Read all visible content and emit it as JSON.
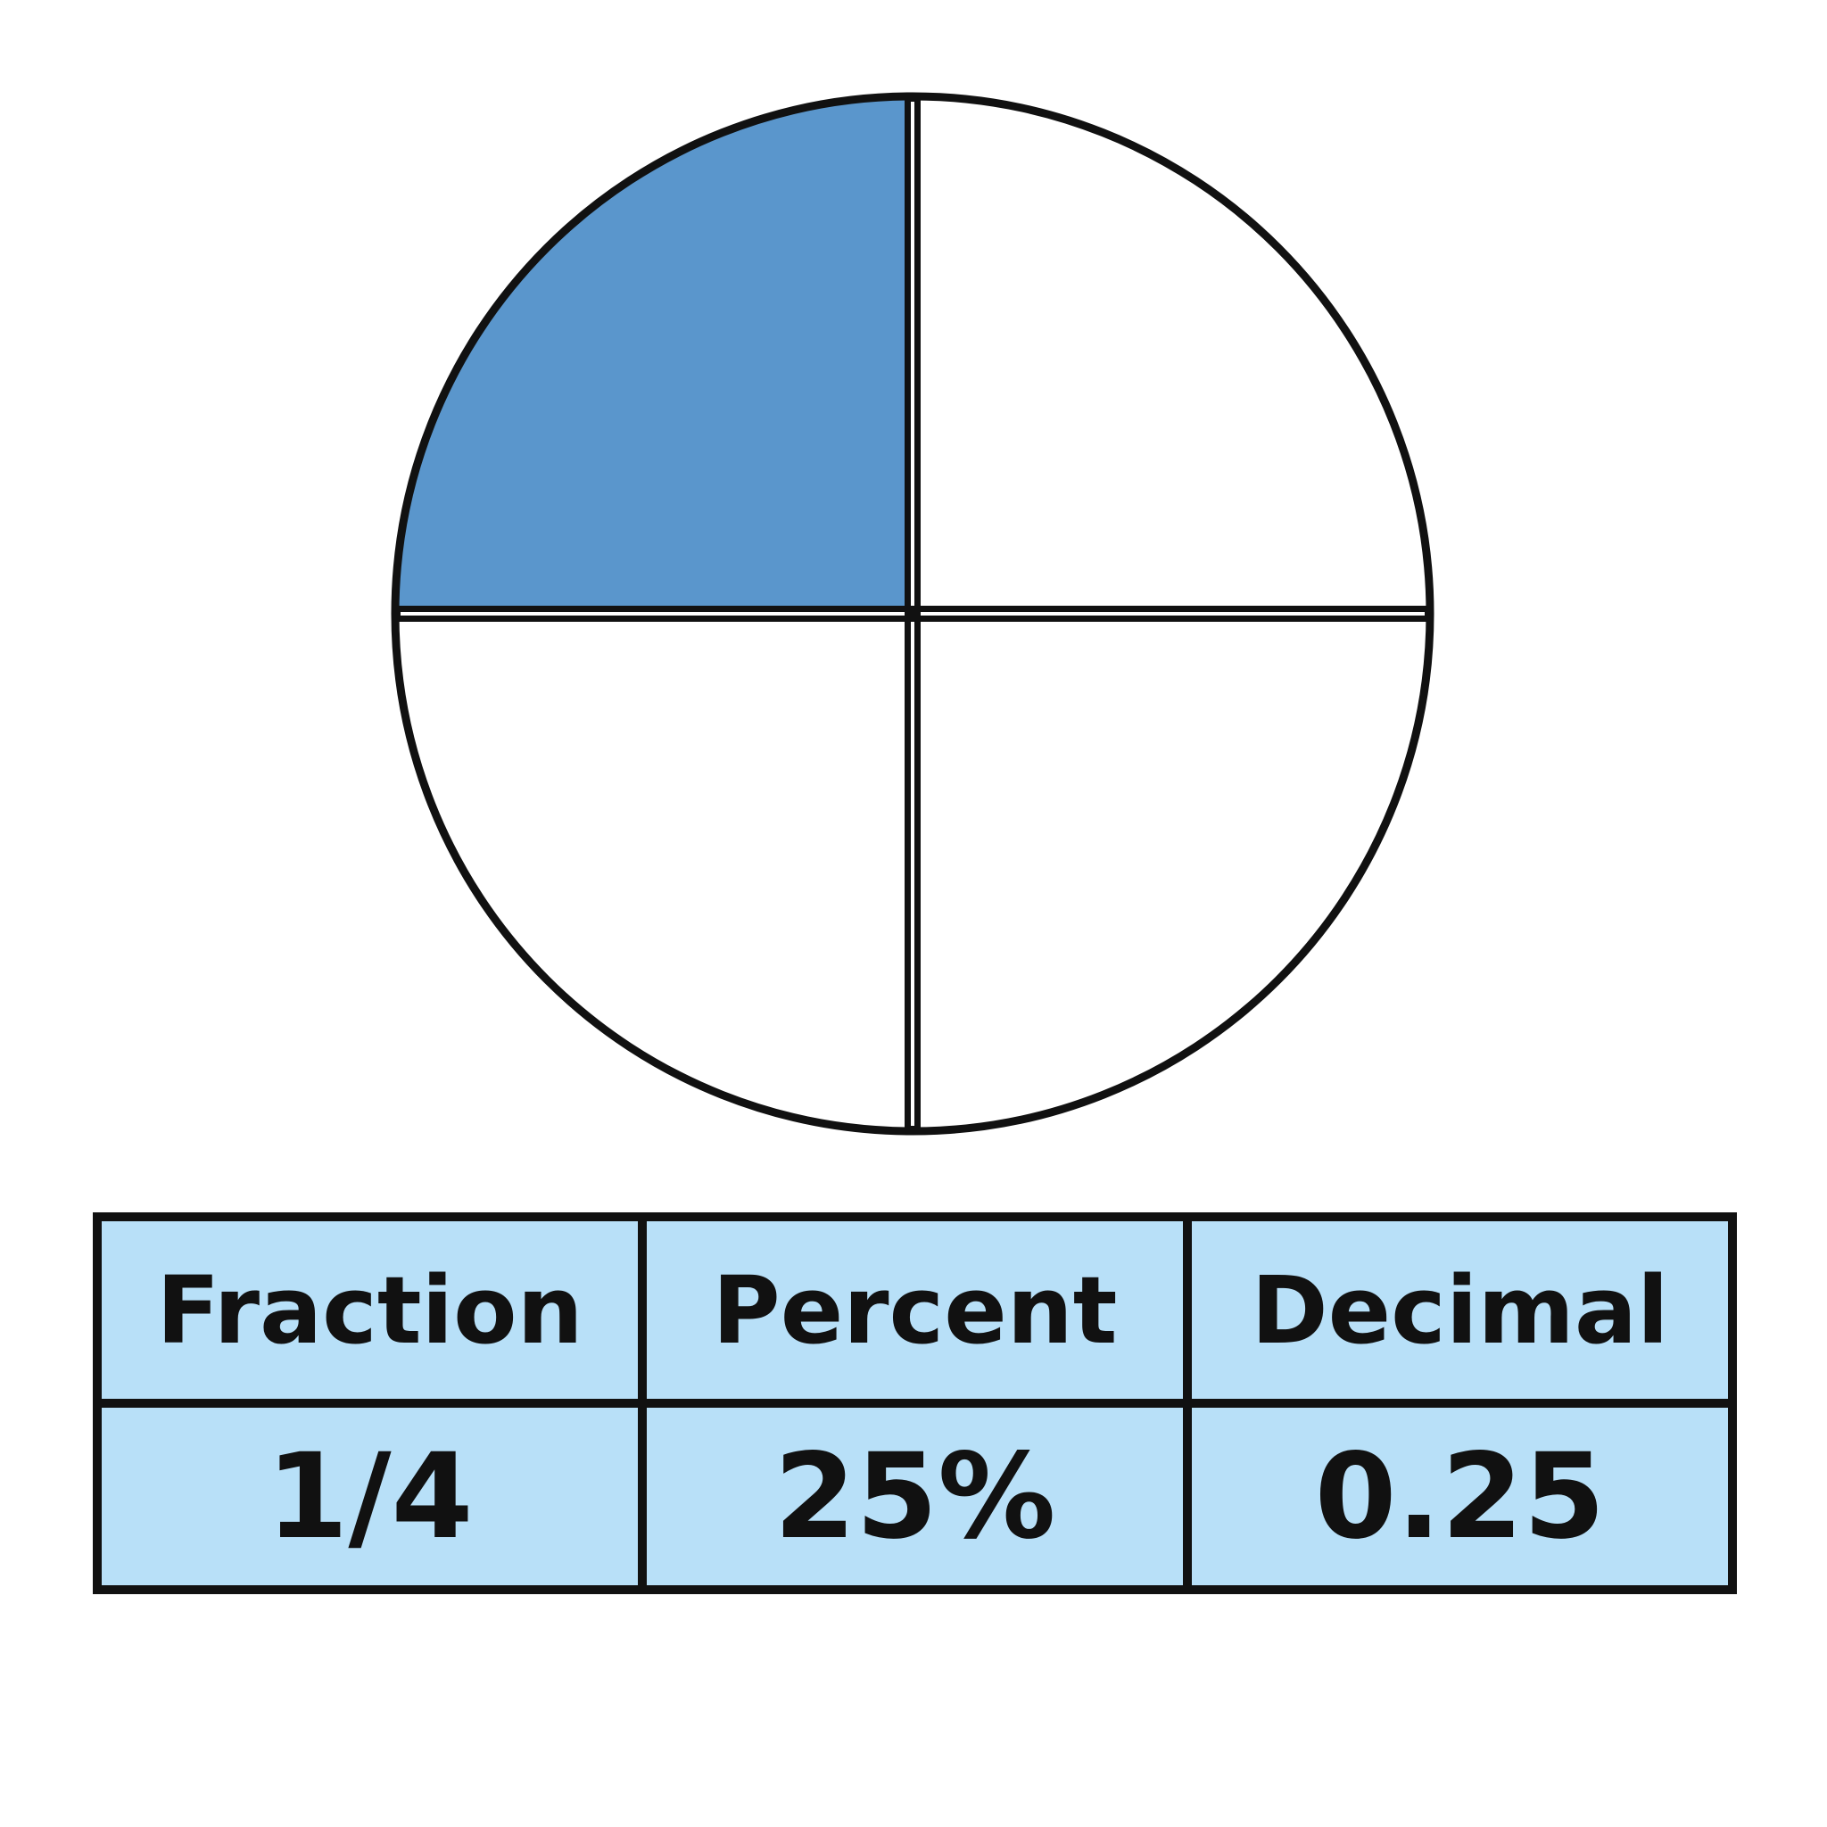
{
  "diagram": {
    "total_parts": 4,
    "shaded_parts": 1,
    "shaded_quadrant": "top-left",
    "colors": {
      "shaded": "#5a96cc",
      "unshaded": "#ffffff",
      "outline": "#111111",
      "table_fill": "#b8e0f8"
    }
  },
  "table": {
    "headers": [
      "Fraction",
      "Percent",
      "Decimal"
    ],
    "values": [
      "1/4",
      "25%",
      "0.25"
    ]
  }
}
